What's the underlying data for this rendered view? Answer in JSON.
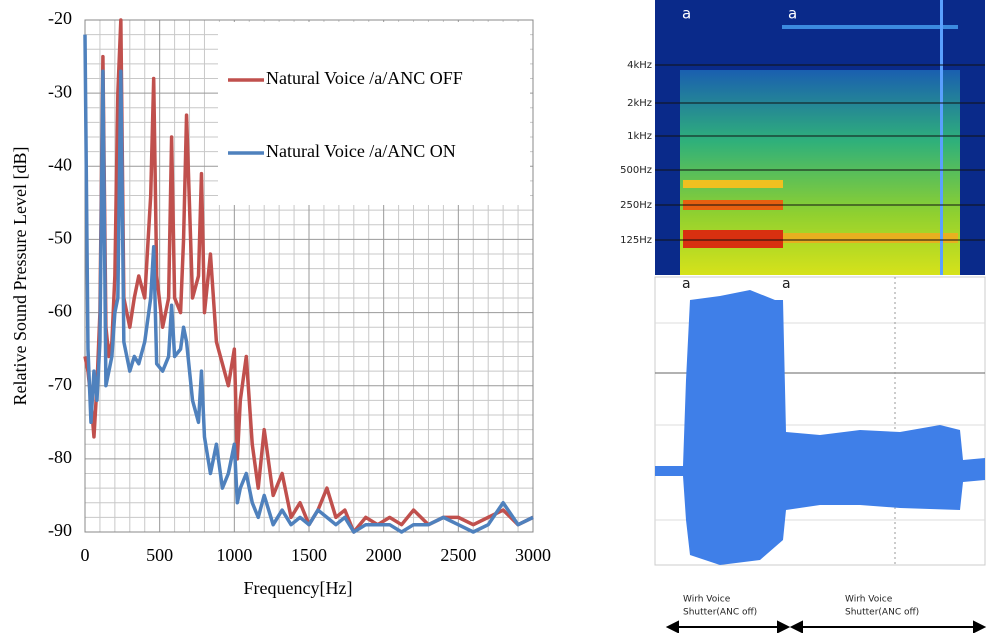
{
  "chart_data": {
    "type": "line",
    "x_label": "Frequency[Hz]",
    "y_label": "Relative Sound Pressure Level [dB]",
    "x": [
      0,
      20,
      40,
      60,
      80,
      100,
      120,
      140,
      160,
      180,
      200,
      220,
      240,
      260,
      280,
      300,
      330,
      360,
      400,
      440,
      460,
      480,
      520,
      560,
      580,
      600,
      640,
      660,
      680,
      720,
      760,
      780,
      800,
      840,
      880,
      920,
      960,
      1000,
      1020,
      1040,
      1080,
      1120,
      1160,
      1200,
      1260,
      1320,
      1380,
      1440,
      1500,
      1560,
      1620,
      1680,
      1740,
      1800,
      1880,
      1960,
      2040,
      2120,
      2200,
      2300,
      2400,
      2500,
      2600,
      2700,
      2800,
      2900,
      3000
    ],
    "series": [
      {
        "name": "Natural Voice /a/ANC OFF",
        "color": "#c0504d",
        "values": [
          -66,
          -68,
          -72,
          -77,
          -70,
          -60,
          -25,
          -62,
          -66,
          -64,
          -55,
          -30,
          -20,
          -58,
          -60,
          -62,
          -58,
          -55,
          -58,
          -44,
          -28,
          -55,
          -62,
          -58,
          -36,
          -58,
          -60,
          -50,
          -33,
          -58,
          -55,
          -41,
          -60,
          -52,
          -64,
          -67,
          -70,
          -65,
          -80,
          -72,
          -66,
          -78,
          -84,
          -76,
          -85,
          -82,
          -88,
          -86,
          -89,
          -87,
          -84,
          -88,
          -87,
          -90,
          -88,
          -89,
          -88,
          -89,
          -87,
          -89,
          -88,
          -88,
          -89,
          -88,
          -87,
          -89,
          -88
        ]
      },
      {
        "name": "Natural Voice /a/ANC ON",
        "color": "#4f81bd",
        "values": [
          -22,
          -65,
          -75,
          -68,
          -72,
          -64,
          -27,
          -70,
          -68,
          -66,
          -60,
          -58,
          -27,
          -64,
          -66,
          -68,
          -66,
          -67,
          -64,
          -58,
          -51,
          -67,
          -68,
          -66,
          -59,
          -66,
          -65,
          -62,
          -64,
          -72,
          -75,
          -68,
          -77,
          -82,
          -78,
          -84,
          -82,
          -78,
          -86,
          -84,
          -82,
          -86,
          -88,
          -85,
          -89,
          -87,
          -89,
          -88,
          -89,
          -87,
          -88,
          -89,
          -88,
          -90,
          -89,
          -89,
          -89,
          -90,
          -89,
          -89,
          -88,
          -89,
          -90,
          -89,
          -86,
          -89,
          -88
        ]
      }
    ],
    "xlim": [
      0,
      3000
    ],
    "xticks": [
      0,
      500,
      1000,
      1500,
      2000,
      2500,
      3000
    ],
    "ylim": [
      -90,
      -20
    ],
    "yticks": [
      -20,
      -30,
      -40,
      -50,
      -60,
      -70,
      -80,
      -90
    ],
    "grid": true,
    "legend": "upper right"
  },
  "figure": {
    "spectrogram_marks": [
      "a",
      "a"
    ],
    "frequency_labels": [
      "4kHz",
      "2kHz",
      "1kHz",
      "500Hz",
      "250Hz",
      "125Hz"
    ],
    "waveform_marks": [
      "a",
      "a"
    ],
    "annotations": [
      [
        "Wirh Voice",
        "Shutter(ANC off)"
      ],
      [
        "Wirh Voice",
        "Shutter(ANC off)"
      ]
    ]
  }
}
